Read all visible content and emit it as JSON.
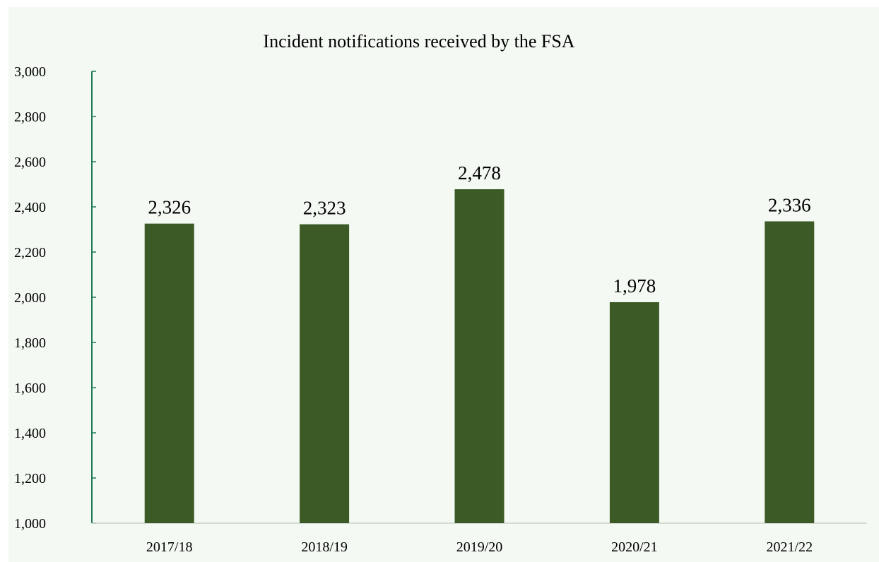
{
  "chart_data": {
    "type": "bar",
    "title": "Incident notifications received by the FSA",
    "categories": [
      "2017/18",
      "2018/19",
      "2019/20",
      "2020/21",
      "2021/22"
    ],
    "values": [
      2326,
      2323,
      2478,
      1978,
      2336
    ],
    "data_labels": [
      "2,326",
      "2,323",
      "2,478",
      "1,978",
      "2,336"
    ],
    "y_ticks": [
      1000,
      1200,
      1400,
      1600,
      1800,
      2000,
      2200,
      2400,
      2600,
      2800,
      3000
    ],
    "y_tick_labels": [
      "1,000",
      "1,200",
      "1,400",
      "1,600",
      "1,800",
      "2,000",
      "2,200",
      "2,400",
      "2,600",
      "2,800",
      "3,000"
    ],
    "ylim": [
      1000,
      3000
    ],
    "xlabel": "",
    "ylabel": "",
    "grid": false,
    "colors": {
      "bar": "#3b5a26",
      "y_axis": "#1e7a55",
      "x_axis": "#c9d3c7",
      "background": "#f4f9f3"
    }
  }
}
